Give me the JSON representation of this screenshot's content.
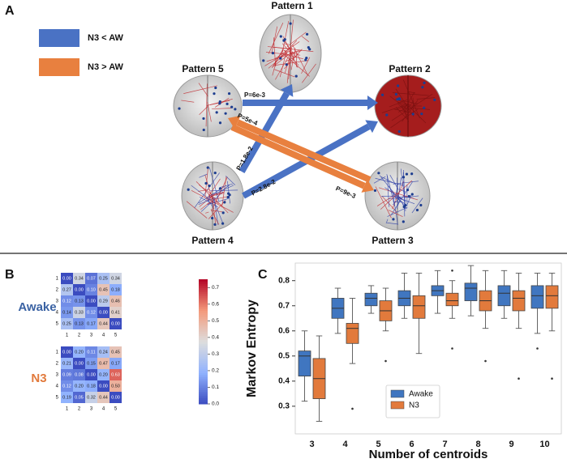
{
  "diagram": {
    "label": "A",
    "legend": [
      {
        "label": "N3 < AW",
        "color": "#4a72c4"
      },
      {
        "label": "N3 > AW",
        "color": "#e8803f"
      }
    ],
    "nodes": [
      {
        "label": "Pattern 1"
      },
      {
        "label": "Pattern 2"
      },
      {
        "label": "Pattern 3"
      },
      {
        "label": "Pattern 4"
      },
      {
        "label": "Pattern 5"
      }
    ],
    "edges": [
      {
        "label": "P=6e-3",
        "color": "#4a72c4"
      },
      {
        "label": "P=1.8e-2",
        "color": "#4a72c4"
      },
      {
        "label": "P=2.8e-2",
        "color": "#4a72c4"
      },
      {
        "label": "P=5e-4",
        "color": "#e8803f"
      },
      {
        "label": "P=9e-3",
        "color": "#e8803f"
      }
    ]
  },
  "colorbar": {
    "vlim": [
      0,
      0.75
    ],
    "ticks": [
      {
        "value": 0,
        "label": "0.0"
      },
      {
        "value": 0.1,
        "label": "0.1"
      },
      {
        "value": 0.2,
        "label": "0.2"
      },
      {
        "value": 0.3,
        "label": "0.3"
      },
      {
        "value": 0.4,
        "label": "0.4"
      },
      {
        "value": 0.5,
        "label": "0.5"
      },
      {
        "value": 0.6,
        "label": "0.6"
      },
      {
        "value": 0.7,
        "label": "0.7"
      }
    ]
  },
  "chart_data": [
    {
      "type": "heatmap",
      "label": "B",
      "title": "Awake",
      "categories": [
        "1",
        "2",
        "3",
        "4",
        "5"
      ],
      "row_categories": [
        "1",
        "2",
        "3",
        "4",
        "5"
      ],
      "values": [
        [
          0,
          0.34,
          0.07,
          0.25,
          0.34
        ],
        [
          0.27,
          0,
          0.1,
          0.45,
          0.18
        ],
        [
          0.12,
          0.13,
          0,
          0.29,
          0.46
        ],
        [
          0.14,
          0.33,
          0.12,
          0,
          0.41
        ],
        [
          0.25,
          0.13,
          0.17,
          0.44,
          0
        ]
      ],
      "value_labels": [
        [
          "0.00",
          "0.34",
          "0.07",
          "0.25",
          "0.34"
        ],
        [
          "0.27",
          "0.00",
          "0.10",
          "0.45",
          "0.18"
        ],
        [
          "0.12",
          "0.13",
          "0.00",
          "0.29",
          "0.46"
        ],
        [
          "0.14",
          "0.33",
          "0.12",
          "0.00",
          "0.41"
        ],
        [
          "0.25",
          "0.13",
          "0.17",
          "0.44",
          "0.00"
        ]
      ]
    },
    {
      "type": "heatmap",
      "title": "N3",
      "categories": [
        "1",
        "2",
        "3",
        "4",
        "5"
      ],
      "row_categories": [
        "1",
        "2",
        "3",
        "4",
        "5"
      ],
      "values": [
        [
          0,
          0.2,
          0.11,
          0.24,
          0.45
        ],
        [
          0.21,
          0,
          0.15,
          0.47,
          0.17
        ],
        [
          0.09,
          0.08,
          0,
          0.2,
          0.63
        ],
        [
          0.12,
          0.2,
          0.18,
          0,
          0.5
        ],
        [
          0.19,
          0.05,
          0.32,
          0.44,
          0
        ]
      ],
      "value_labels": [
        [
          "0.00",
          "0.20",
          "0.11",
          "0.24",
          "0.45"
        ],
        [
          "0.21",
          "0.00",
          "0.15",
          "0.47",
          "0.17"
        ],
        [
          "0.09",
          "0.08",
          "0.00",
          "0.20",
          "0.63"
        ],
        [
          "0.12",
          "0.20",
          "0.18",
          "0.00",
          "0.50"
        ],
        [
          "0.19",
          "0.05",
          "0.32",
          "0.44",
          "0.00"
        ]
      ]
    },
    {
      "type": "box",
      "label": "C",
      "x_label": "Number of centroids",
      "y_label": "Markov Entropy",
      "categories": [
        "3",
        "4",
        "5",
        "6",
        "7",
        "8",
        "9",
        "10"
      ],
      "ylim": [
        0.19,
        0.87
      ],
      "yticks": [
        0.3,
        0.4,
        0.5,
        0.6,
        0.7,
        0.8
      ],
      "grid": false,
      "series": [
        {
          "name": "Awake",
          "color": "#4076c0",
          "whisker_low": [
            0.32,
            0.59,
            0.67,
            0.65,
            0.67,
            0.66,
            0.65,
            0.59
          ],
          "q1": [
            0.42,
            0.65,
            0.7,
            0.7,
            0.74,
            0.72,
            0.7,
            0.69
          ],
          "median": [
            0.5,
            0.69,
            0.73,
            0.73,
            0.76,
            0.77,
            0.75,
            0.74
          ],
          "q3": [
            0.52,
            0.73,
            0.75,
            0.76,
            0.78,
            0.79,
            0.78,
            0.78
          ],
          "whisker_high": [
            0.6,
            0.77,
            0.78,
            0.83,
            0.84,
            0.86,
            0.84,
            0.83
          ],
          "outliers": [
            [],
            [],
            [],
            [],
            [],
            [],
            [],
            [
              0.53
            ]
          ]
        },
        {
          "name": "N3",
          "color": "#e27a3c",
          "whisker_low": [
            0.24,
            0.47,
            0.6,
            0.51,
            0.65,
            0.61,
            0.61,
            0.6
          ],
          "q1": [
            0.33,
            0.55,
            0.64,
            0.65,
            0.7,
            0.68,
            0.68,
            0.69
          ],
          "median": [
            0.41,
            0.61,
            0.68,
            0.7,
            0.72,
            0.72,
            0.73,
            0.74
          ],
          "q3": [
            0.49,
            0.63,
            0.72,
            0.74,
            0.75,
            0.76,
            0.76,
            0.78
          ],
          "whisker_high": [
            0.58,
            0.73,
            0.77,
            0.83,
            0.8,
            0.84,
            0.83,
            0.83
          ],
          "outliers": [
            [],
            [
              0.29
            ],
            [
              0.48
            ],
            [],
            [
              0.84,
              0.53
            ],
            [
              0.48
            ],
            [
              0.41
            ],
            [
              0.41
            ]
          ]
        }
      ]
    }
  ]
}
